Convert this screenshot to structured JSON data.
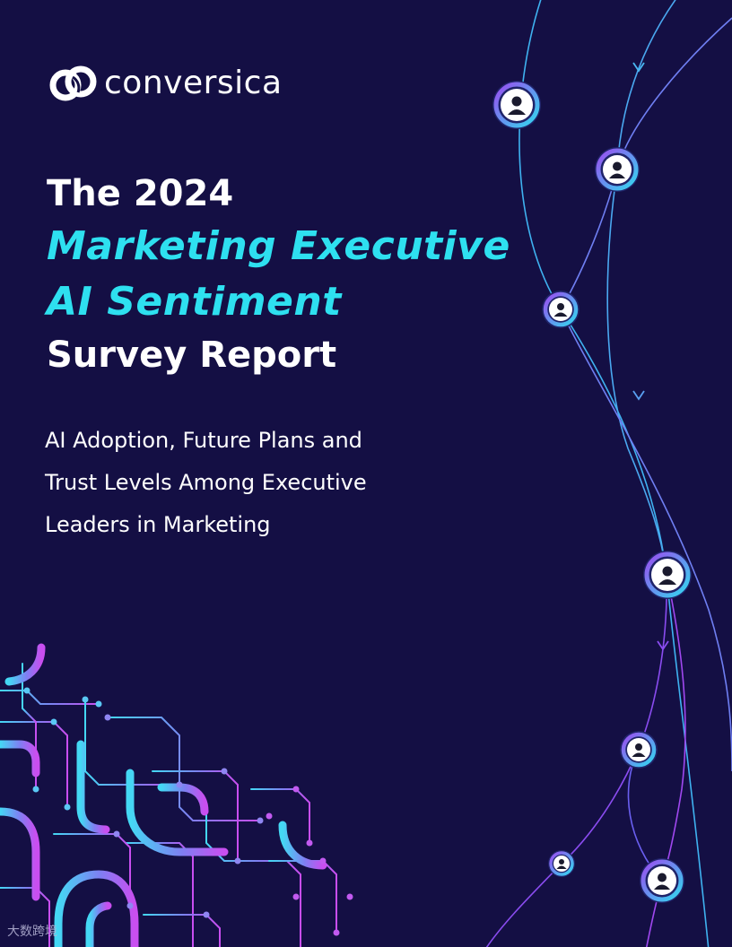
{
  "brand": {
    "logo_text": "conversica",
    "logo_icon": "interlocking-rings-icon"
  },
  "title": {
    "line1": "The 2024",
    "line2": "Marketing Executive",
    "line3": "AI Sentiment",
    "line4": "Survey Report"
  },
  "subtitle": {
    "line1": "AI Adoption, Future Plans and",
    "line2": "Trust Levels Among Executive",
    "line3": "Leaders in Marketing"
  },
  "watermark": "大数跨境",
  "colors": {
    "background": "#140f44",
    "accent_cyan": "#2ee0f0",
    "accent_purple": "#8a4cf0",
    "line_blue": "#4aa8f0"
  },
  "icons": [
    "avatar-icon",
    "arrow-down-icon",
    "circuit-pattern-icon"
  ]
}
